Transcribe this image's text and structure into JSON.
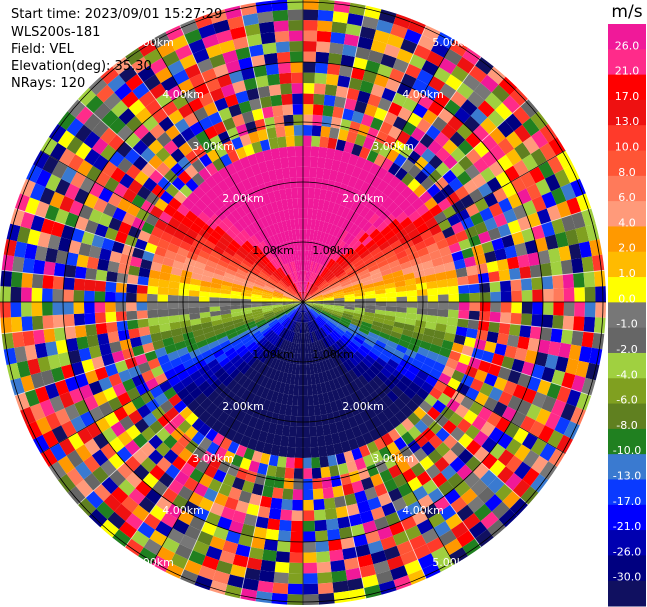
{
  "header": {
    "start_time": "Start time: 2023/09/01 15:27:29",
    "instrument": "WLS200s-181",
    "field": "Field: VEL",
    "elevation": "Elevation(deg): 35.30",
    "nrays": "NRays: 120"
  },
  "chart_data": {
    "type": "heatmap",
    "projection": "polar-ppi",
    "field": "VEL",
    "nrays": 120,
    "elevation_deg": 35.3,
    "range_unit": "km",
    "range_rings_km": [
      1.0,
      2.0,
      3.0,
      4.0,
      5.0
    ],
    "max_range_km": 5.0,
    "range_labels": [
      "1.00km",
      "2.00km",
      "3.00km",
      "4.00km",
      "5.00km"
    ],
    "colorbar": {
      "unit": "m/s",
      "ticks": [
        "26.0",
        "21.0",
        "17.0",
        "13.0",
        "10.0",
        "8.0",
        "6.0",
        "4.0",
        "2.0",
        "1.0",
        "0.0",
        "-1.0",
        "-2.0",
        "-4.0",
        "-6.0",
        "-8.0",
        "-10.0",
        "-13.0",
        "-17.0",
        "-21.0",
        "-26.0",
        "-30.0"
      ],
      "colors": [
        "#f01999",
        "#ff2b8a",
        "#ff0000",
        "#ee1111",
        "#ff3a2a",
        "#ff5535",
        "#ff7a5a",
        "#ff9a7a",
        "#ff9900",
        "#ffbb00",
        "#ffff00",
        "#777777",
        "#666666",
        "#a0d040",
        "#80a020",
        "#608020",
        "#208020",
        "#3a7ad0",
        "#0a3aff",
        "#0000ff",
        "#0000b0",
        "#000080",
        "#101060"
      ]
    },
    "radial_velocity_pattern": {
      "toward_top": "positive (reds)",
      "toward_bottom": "negative (blues)",
      "clean_range_km": 2.6,
      "noise_beyond_km": 2.6
    }
  }
}
